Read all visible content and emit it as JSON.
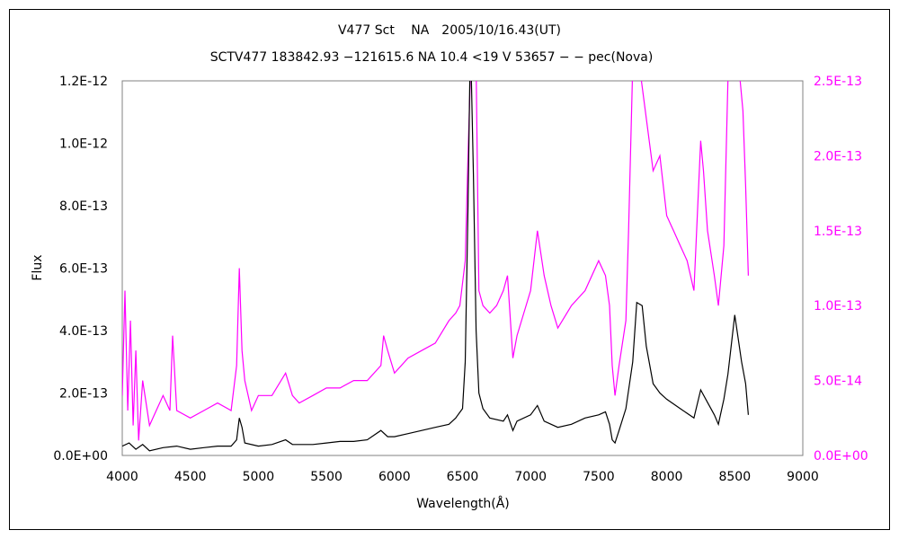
{
  "chart_data": {
    "type": "line",
    "title": "V477 Sct　 NA　2005/10/16.43(UT)",
    "subtitle": "SCTV477 183842.93 −121615.6 NA 10.4 <19  V 53657 − − pec(Nova)",
    "xlabel": "Wavelength(Å)",
    "ylabel": "Flux",
    "xlim": [
      4000,
      9000
    ],
    "ylim": [
      0,
      1.2e-12
    ],
    "y2lim": [
      0,
      2.5e-13
    ],
    "xticks": [
      "4000",
      "4500",
      "5000",
      "5500",
      "6000",
      "6500",
      "7000",
      "7500",
      "8000",
      "8500",
      "9000"
    ],
    "yticks": [
      "0.0E+00",
      "2.0E-13",
      "4.0E-13",
      "6.0E-13",
      "8.0E-13",
      "1.0E-12",
      "1.2E-12"
    ],
    "y2ticks": [
      "0.0E+00",
      "5.0E-14",
      "1.0E-13",
      "1.5E-13",
      "2.0E-13",
      "2.5E-13"
    ],
    "grid": false,
    "series": [
      {
        "axis": "left",
        "color": "#000000",
        "x": [
          4000,
          4050,
          4100,
          4150,
          4200,
          4300,
          4400,
          4500,
          4600,
          4700,
          4800,
          4840,
          4860,
          4880,
          4900,
          5000,
          5100,
          5200,
          5250,
          5300,
          5400,
          5500,
          5600,
          5700,
          5800,
          5900,
          5950,
          6000,
          6100,
          6200,
          6300,
          6400,
          6450,
          6500,
          6520,
          6540,
          6555,
          6563,
          6580,
          6600,
          6620,
          6650,
          6700,
          6800,
          6830,
          6870,
          6900,
          7000,
          7050,
          7100,
          7200,
          7300,
          7400,
          7500,
          7550,
          7580,
          7600,
          7620,
          7650,
          7700,
          7750,
          7780,
          7820,
          7850,
          7900,
          7950,
          8000,
          8100,
          8200,
          8250,
          8300,
          8350,
          8380,
          8420,
          8450,
          8500,
          8550,
          8580,
          8600
        ],
        "y": [
          3e-14,
          4e-14,
          2e-14,
          3.5e-14,
          1.5e-14,
          2.5e-14,
          3e-14,
          2e-14,
          2.5e-14,
          3e-14,
          3e-14,
          5e-14,
          1.2e-13,
          9e-14,
          4e-14,
          3e-14,
          3.5e-14,
          5e-14,
          3.5e-14,
          3.5e-14,
          3.5e-14,
          4e-14,
          4.5e-14,
          4.5e-14,
          5e-14,
          8e-14,
          6e-14,
          6e-14,
          7e-14,
          8e-14,
          9e-14,
          1e-13,
          1.2e-13,
          1.5e-13,
          3e-13,
          8e-13,
          1.25e-12,
          1.25e-12,
          9e-13,
          4e-13,
          2e-13,
          1.5e-13,
          1.2e-13,
          1.1e-13,
          1.3e-13,
          8e-14,
          1.1e-13,
          1.3e-13,
          1.6e-13,
          1.1e-13,
          9e-14,
          1e-13,
          1.2e-13,
          1.3e-13,
          1.4e-13,
          1e-13,
          5e-14,
          4e-14,
          8e-14,
          1.5e-13,
          3e-13,
          4.9e-13,
          4.8e-13,
          3.5e-13,
          2.3e-13,
          2e-13,
          1.8e-13,
          1.5e-13,
          1.2e-13,
          2.1e-13,
          1.7e-13,
          1.3e-13,
          1e-13,
          1.8e-13,
          2.6e-13,
          4.5e-13,
          3e-13,
          2.3e-13,
          1.3e-13
        ]
      },
      {
        "axis": "right",
        "color": "#ff00ff",
        "x": [
          4000,
          4020,
          4040,
          4060,
          4080,
          4100,
          4120,
          4150,
          4200,
          4250,
          4300,
          4350,
          4370,
          4400,
          4500,
          4600,
          4700,
          4800,
          4840,
          4860,
          4880,
          4900,
          4950,
          5000,
          5100,
          5200,
          5250,
          5300,
          5400,
          5500,
          5600,
          5700,
          5800,
          5900,
          5920,
          5950,
          6000,
          6100,
          6200,
          6300,
          6400,
          6450,
          6480,
          6520,
          6540,
          6560,
          6600,
          6620,
          6650,
          6700,
          6750,
          6800,
          6830,
          6870,
          6900,
          7000,
          7050,
          7100,
          7150,
          7200,
          7300,
          7400,
          7500,
          7550,
          7580,
          7600,
          7620,
          7650,
          7700,
          7720,
          7750,
          7800,
          7900,
          7950,
          8000,
          8050,
          8100,
          8150,
          8200,
          8250,
          8270,
          8300,
          8350,
          8380,
          8420,
          8450,
          8500,
          8530,
          8560,
          8580,
          8600
        ],
        "y": [
          4e-14,
          1.1e-13,
          3e-14,
          9e-14,
          2e-14,
          7e-14,
          1e-14,
          5e-14,
          2e-14,
          3e-14,
          4e-14,
          3e-14,
          8e-14,
          3e-14,
          2.5e-14,
          3e-14,
          3.5e-14,
          3e-14,
          6e-14,
          1.25e-13,
          7e-14,
          5e-14,
          3e-14,
          4e-14,
          4e-14,
          5.5e-14,
          4e-14,
          3.5e-14,
          4e-14,
          4.5e-14,
          4.5e-14,
          5e-14,
          5e-14,
          6e-14,
          8e-14,
          7e-14,
          5.5e-14,
          6.5e-14,
          7e-14,
          7.5e-14,
          9e-14,
          9.5e-14,
          1e-13,
          1.3e-13,
          2e-13,
          2.6e-13,
          2.6e-13,
          1.1e-13,
          1e-13,
          9.5e-14,
          1e-13,
          1.1e-13,
          1.2e-13,
          6.5e-14,
          8e-14,
          1.1e-13,
          1.5e-13,
          1.2e-13,
          1e-13,
          8.5e-14,
          1e-13,
          1.1e-13,
          1.3e-13,
          1.2e-13,
          1e-13,
          6e-14,
          4e-14,
          6e-14,
          9e-14,
          1.5e-13,
          2.6e-13,
          2.6e-13,
          1.9e-13,
          2e-13,
          1.6e-13,
          1.5e-13,
          1.4e-13,
          1.3e-13,
          1.1e-13,
          2.1e-13,
          1.9e-13,
          1.5e-13,
          1.2e-13,
          1e-13,
          1.4e-13,
          2.5e-13,
          2.6e-13,
          2.6e-13,
          2.3e-13,
          1.8e-13,
          1.2e-13
        ]
      }
    ]
  }
}
